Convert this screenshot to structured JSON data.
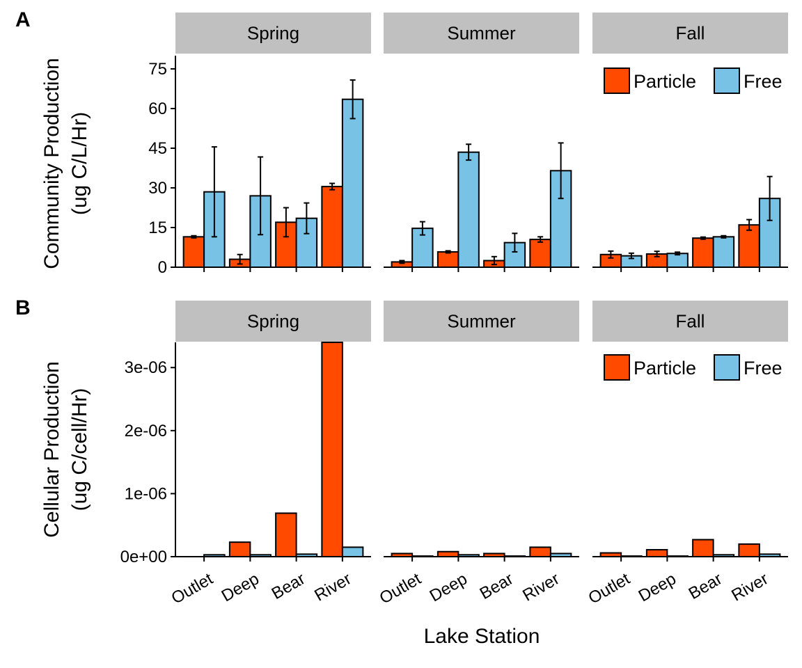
{
  "panels": [
    {
      "letter": "A",
      "ylabel_line1": "Community Production",
      "ylabel_line2": "(ug C/L/Hr)"
    },
    {
      "letter": "B",
      "ylabel_line1": "Cellular Production",
      "ylabel_line2": "(ug C/cell/Hr)"
    }
  ],
  "xlabel": "Lake Station",
  "colors": {
    "Particle": "#FF4A00",
    "Free": "#78C2E6",
    "strip": "#C0C0C0"
  },
  "chart_data": [
    {
      "type": "bar",
      "panel": "A",
      "facets": [
        "Spring",
        "Summer",
        "Fall"
      ],
      "categories": [
        "Outlet",
        "Deep",
        "Bear",
        "River"
      ],
      "ylim": [
        0,
        80
      ],
      "yticks": [
        0,
        15,
        30,
        45,
        60,
        75
      ],
      "ytick_labels": [
        "0",
        "15",
        "30",
        "45",
        "60",
        "75"
      ],
      "legend": [
        "Particle",
        "Free"
      ],
      "legend_position": "top-right",
      "grid": false,
      "series": [
        {
          "name": "Particle",
          "values": {
            "Spring": [
              11.5,
              3.0,
              17.0,
              30.5
            ],
            "Summer": [
              2.0,
              5.8,
              2.5,
              10.5
            ],
            "Fall": [
              4.8,
              5.0,
              11.0,
              16.0
            ]
          },
          "error": {
            "Spring": [
              0.4,
              1.8,
              5.5,
              1.2
            ],
            "Summer": [
              0.5,
              0.4,
              1.5,
              1.0
            ],
            "Fall": [
              1.3,
              1.0,
              0.4,
              2.0
            ]
          }
        },
        {
          "name": "Free",
          "values": {
            "Spring": [
              28.5,
              27.0,
              18.5,
              63.5
            ],
            "Summer": [
              14.7,
              43.5,
              9.3,
              36.5
            ],
            "Fall": [
              4.3,
              5.2,
              11.5,
              26.0
            ]
          },
          "error": {
            "Spring": [
              17.0,
              14.7,
              5.8,
              7.3
            ],
            "Summer": [
              2.5,
              3.0,
              3.5,
              10.5
            ],
            "Fall": [
              1.0,
              0.5,
              0.4,
              8.3
            ]
          }
        }
      ]
    },
    {
      "type": "bar",
      "panel": "B",
      "facets": [
        "Spring",
        "Summer",
        "Fall"
      ],
      "categories": [
        "Outlet",
        "Deep",
        "Bear",
        "River"
      ],
      "ylim": [
        0,
        3.4e-06
      ],
      "yticks": [
        0,
        1e-06,
        2e-06,
        3e-06
      ],
      "ytick_labels": [
        "0e+00",
        "1e-06",
        "2e-06",
        "3e-06"
      ],
      "legend": [
        "Particle",
        "Free"
      ],
      "legend_position": "top-right",
      "grid": false,
      "series": [
        {
          "name": "Particle",
          "values": {
            "Spring": [
              0.0,
              2.3e-07,
              6.9e-07,
              3.4e-06
            ],
            "Summer": [
              5e-08,
              8e-08,
              5e-08,
              1.5e-07
            ],
            "Fall": [
              6e-08,
              1.1e-07,
              2.7e-07,
              2e-07
            ]
          }
        },
        {
          "name": "Free",
          "values": {
            "Spring": [
              3e-08,
              3e-08,
              4e-08,
              1.5e-07
            ],
            "Summer": [
              1e-08,
              3e-08,
              1e-08,
              5e-08
            ],
            "Fall": [
              1e-08,
              1e-08,
              3e-08,
              4e-08
            ]
          }
        }
      ]
    }
  ]
}
